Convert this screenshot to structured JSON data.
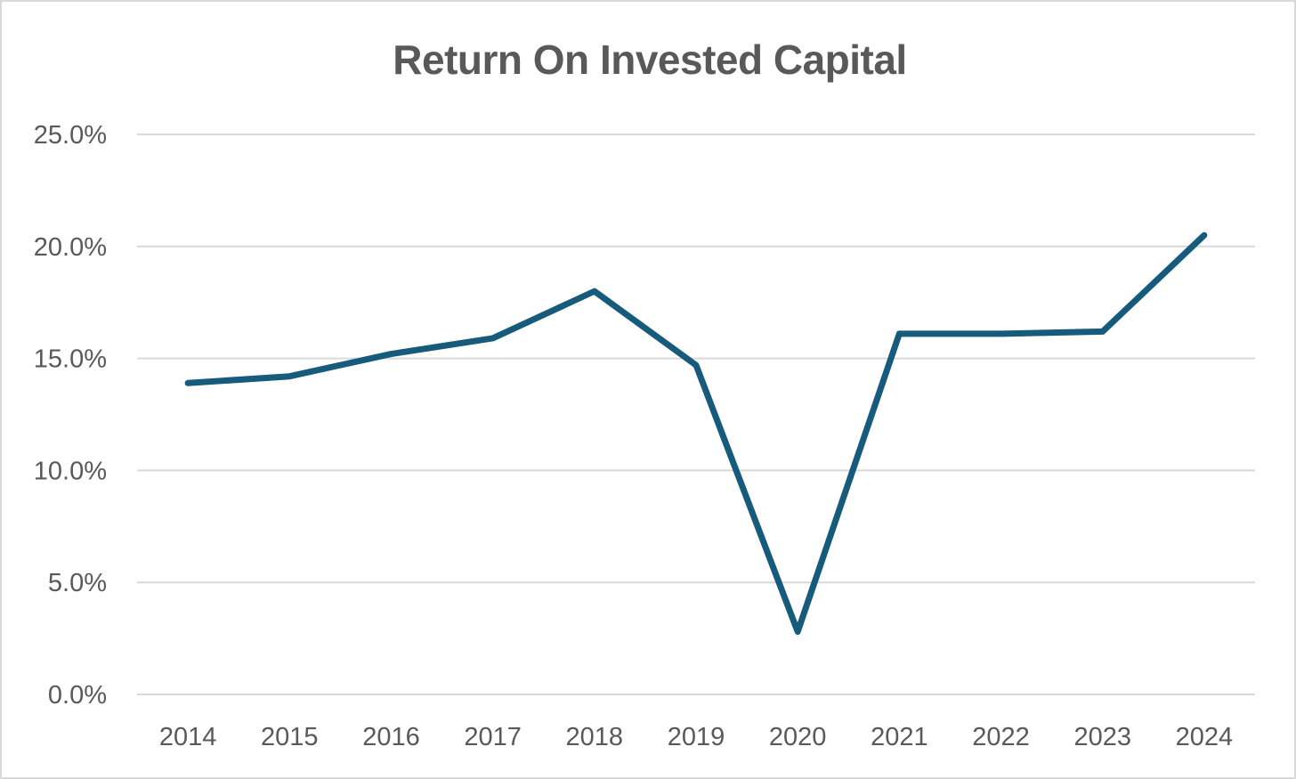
{
  "chart_data": {
    "type": "line",
    "title": "Return On Invested Capital",
    "xlabel": "",
    "ylabel": "",
    "categories": [
      "2014",
      "2015",
      "2016",
      "2017",
      "2018",
      "2019",
      "2020",
      "2021",
      "2022",
      "2023",
      "2024"
    ],
    "series": [
      {
        "values": [
          13.9,
          14.2,
          15.2,
          15.9,
          18.0,
          14.7,
          2.8,
          16.1,
          16.1,
          16.2,
          20.5
        ],
        "color": "#165a7c"
      }
    ],
    "ylim": [
      0,
      25
    ],
    "yticks": [
      0,
      5,
      10,
      15,
      20,
      25
    ],
    "ytick_labels": [
      "0.0%",
      "5.0%",
      "10.0%",
      "15.0%",
      "20.0%",
      "25.0%"
    ],
    "grid": "horizontal",
    "legend": "none",
    "colors": {
      "line": "#165a7c",
      "grid": "#d9d9d9",
      "text": "#595959",
      "border": "#d9d9d9"
    }
  }
}
